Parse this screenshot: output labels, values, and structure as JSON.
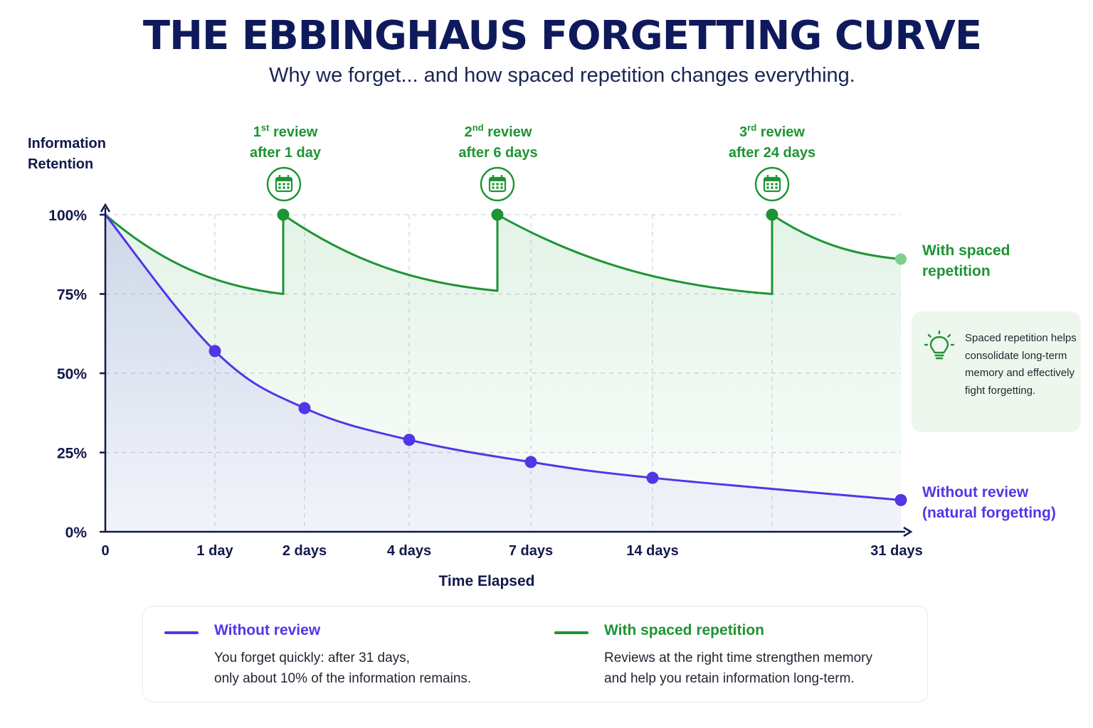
{
  "title": "THE EBBINGHAUS FORGETTING CURVE",
  "subtitle": "Why we forget... and how spaced repetition changes everything.",
  "colors": {
    "without": "#5236e6",
    "with": "#1e9434",
    "axis": "#12184a",
    "grid": "#cfd3dc",
    "title": "#0f1a5c"
  },
  "chart_data": {
    "type": "line",
    "ylabel": [
      "Information",
      "Retention"
    ],
    "xlabel": "Time Elapsed",
    "y_ticks": [
      "0%",
      "25%",
      "50%",
      "75%",
      "100%"
    ],
    "y_tick_values": [
      0,
      25,
      50,
      75,
      100
    ],
    "ylim": [
      0,
      100
    ],
    "x_ticks": [
      "0",
      "1 day",
      "2 days",
      "4 days",
      "7 days",
      "14 days",
      "31 days"
    ],
    "grid": true,
    "series": [
      {
        "name": "Without review",
        "end_label": [
          "Without review",
          "(natural forgetting)"
        ],
        "color": "#5236e6",
        "x": [
          "0",
          "1 day",
          "2 days",
          "4 days",
          "7 days",
          "14 days",
          "31 days"
        ],
        "values": [
          100,
          57,
          39,
          29,
          22,
          17,
          10
        ]
      },
      {
        "name": "With spaced repetition",
        "end_label": [
          "With spaced",
          "repetition"
        ],
        "color": "#1e9434",
        "review_peaks": [
          100,
          100,
          100
        ],
        "values_before_review": [
          75,
          76,
          75
        ],
        "end_value": 86
      }
    ],
    "reviews": [
      {
        "ordinal": "1",
        "suffix": "st",
        "word": "review",
        "after": "after 1 day"
      },
      {
        "ordinal": "2",
        "suffix": "nd",
        "word": "review",
        "after": "after 6 days"
      },
      {
        "ordinal": "3",
        "suffix": "rd",
        "word": "review",
        "after": "after 24 days"
      }
    ],
    "reviews_icon": "calendar-icon"
  },
  "tip": {
    "icon": "lightbulb-icon",
    "text": "Spaced repetition helps consolidate long-term memory and effectively fight forgetting."
  },
  "legend": {
    "without": {
      "title": "Without review",
      "desc": [
        "You forget quickly: after 31 days,",
        "only about 10% of the information remains."
      ]
    },
    "with": {
      "title": "With spaced repetition",
      "desc": [
        "Reviews at the right time strengthen memory",
        "and help you retain information long-term."
      ]
    }
  }
}
